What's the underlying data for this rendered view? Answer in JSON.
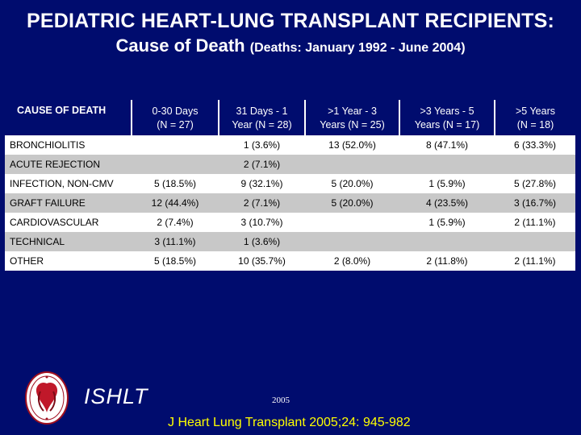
{
  "title": {
    "line1": "PEDIATRIC HEART-LUNG TRANSPLANT RECIPIENTS:",
    "line2_main": "Cause of Death",
    "line2_sub": "(Deaths: January 1992 - June 2004)"
  },
  "table": {
    "header": {
      "cause": "CAUSE OF DEATH",
      "col1": [
        "0-30 Days",
        "(N = 27)"
      ],
      "col2": [
        "31 Days - 1",
        "Year   (N = 28)"
      ],
      "col3": [
        ">1 Year - 3",
        "Years  (N = 25)"
      ],
      "col4": [
        ">3 Years - 5",
        "Years   (N = 17)"
      ],
      "col5": [
        ">5 Years",
        "(N = 18)"
      ]
    },
    "rows": [
      {
        "cause": "BRONCHIOLITIS",
        "v": [
          "",
          "1 (3.6%)",
          "13 (52.0%)",
          "8 (47.1%)",
          "6 (33.3%)"
        ]
      },
      {
        "cause": "ACUTE REJECTION",
        "v": [
          "",
          "2 (7.1%)",
          "",
          "",
          ""
        ]
      },
      {
        "cause": "INFECTION, NON-CMV",
        "v": [
          "5 (18.5%)",
          "9 (32.1%)",
          "5 (20.0%)",
          "1 (5.9%)",
          "5 (27.8%)"
        ]
      },
      {
        "cause": "GRAFT FAILURE",
        "v": [
          "12 (44.4%)",
          "2 (7.1%)",
          "5 (20.0%)",
          "4 (23.5%)",
          "3 (16.7%)"
        ]
      },
      {
        "cause": "CARDIOVASCULAR",
        "v": [
          "2 (7.4%)",
          "3 (10.7%)",
          "",
          "1 (5.9%)",
          "2 (11.1%)"
        ]
      },
      {
        "cause": "TECHNICAL",
        "v": [
          "3 (11.1%)",
          "1 (3.6%)",
          "",
          "",
          ""
        ]
      },
      {
        "cause": "OTHER",
        "v": [
          "5 (18.5%)",
          "10 (35.7%)",
          "2 (8.0%)",
          "2 (11.8%)",
          "2 (11.1%)"
        ]
      }
    ]
  },
  "footer": {
    "logo_text": "ISHLT",
    "year": "2005",
    "citation": "J Heart Lung Transplant 2005;24: 945-982"
  },
  "colors": {
    "background": "#000c6e",
    "citation": "#ffff00",
    "row_alt": "#c8c8c8"
  }
}
